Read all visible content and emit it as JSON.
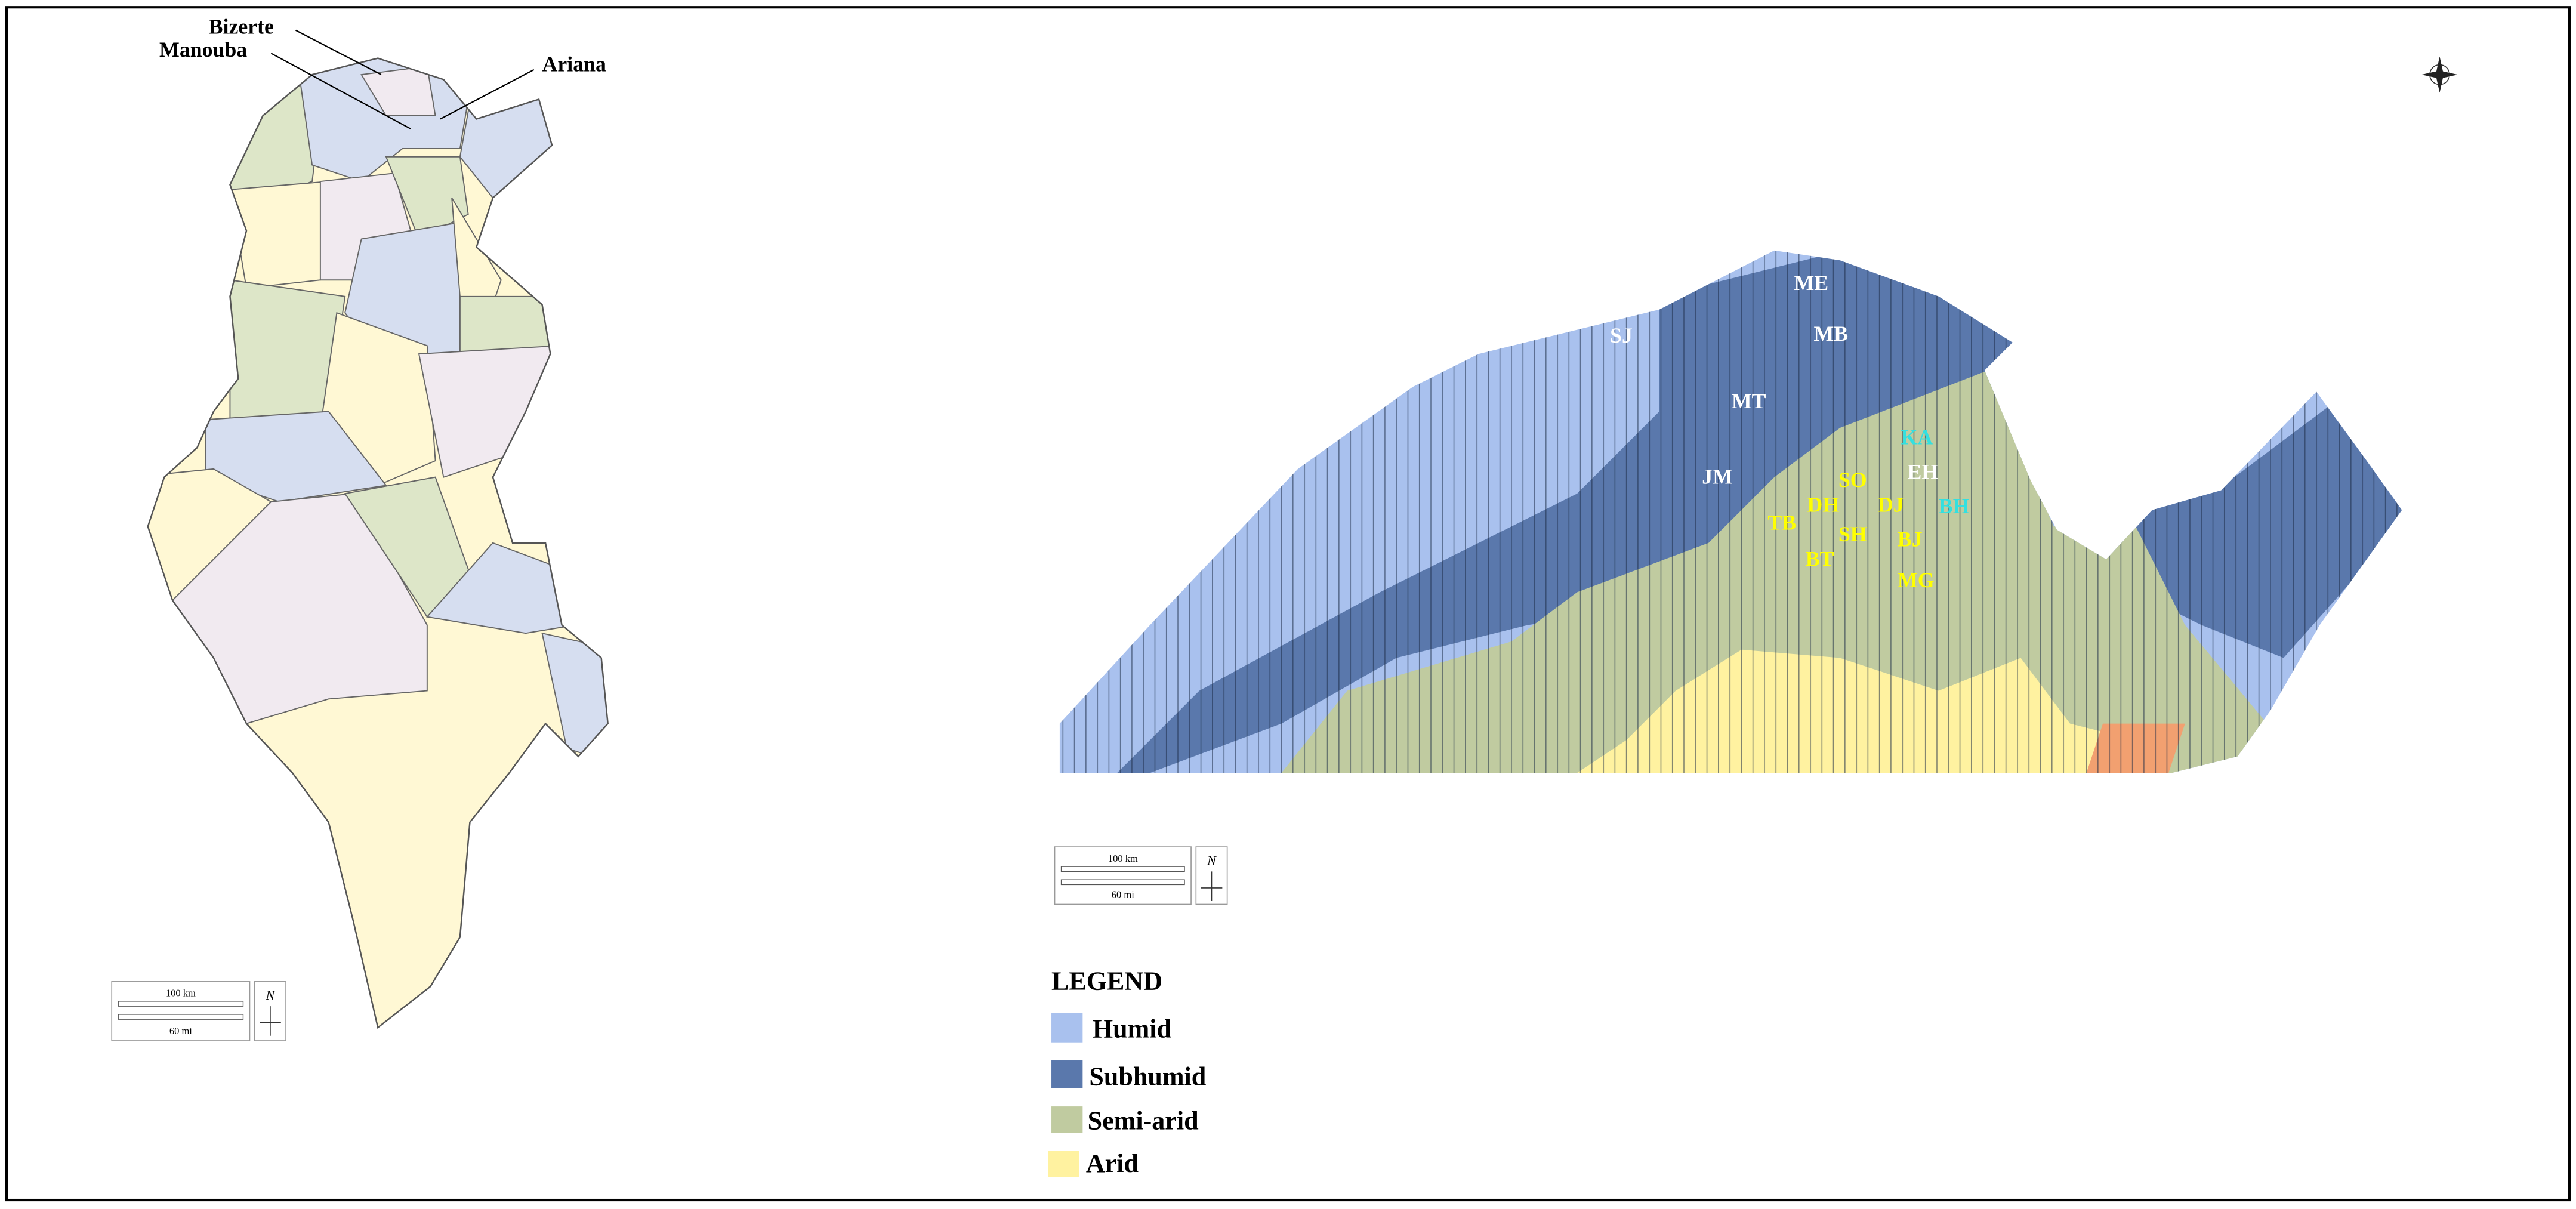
{
  "left_map": {
    "labels": [
      "Bizerte",
      "Manouba",
      "Ariana"
    ],
    "scale": {
      "km": "100 km",
      "mi": "60 mi",
      "north": "N"
    }
  },
  "right_map": {
    "labels": [
      {
        "text": "SJ",
        "color": "#ffffff"
      },
      {
        "text": "ME",
        "color": "#ffffff"
      },
      {
        "text": "MB",
        "color": "#ffffff"
      },
      {
        "text": "MT",
        "color": "#ffffff"
      },
      {
        "text": "JM",
        "color": "#ffffff"
      },
      {
        "text": "KA",
        "color": "#33e0e0"
      },
      {
        "text": "EH",
        "color": "#ffffff"
      },
      {
        "text": "SO",
        "color": "#ffff00"
      },
      {
        "text": "DH",
        "color": "#ffff00"
      },
      {
        "text": "DJ",
        "color": "#ffff00"
      },
      {
        "text": "BH",
        "color": "#33e0e0"
      },
      {
        "text": "TB",
        "color": "#ffff00"
      },
      {
        "text": "SH",
        "color": "#ffff00"
      },
      {
        "text": "BJ",
        "color": "#ffff00"
      },
      {
        "text": "BT",
        "color": "#ffff00"
      },
      {
        "text": "MG",
        "color": "#ffff00"
      }
    ],
    "scale": {
      "km": "100 km",
      "mi": "60 mi",
      "north": "N"
    }
  },
  "legend": {
    "title": "LEGEND",
    "items": [
      {
        "label": "Humid",
        "color": "#a9c1ee"
      },
      {
        "label": "Subhumid",
        "color": "#5a78ac"
      },
      {
        "label": "Semi-arid",
        "color": "#c0cba0"
      },
      {
        "label": "Arid",
        "color": "#fff2a0"
      }
    ]
  }
}
